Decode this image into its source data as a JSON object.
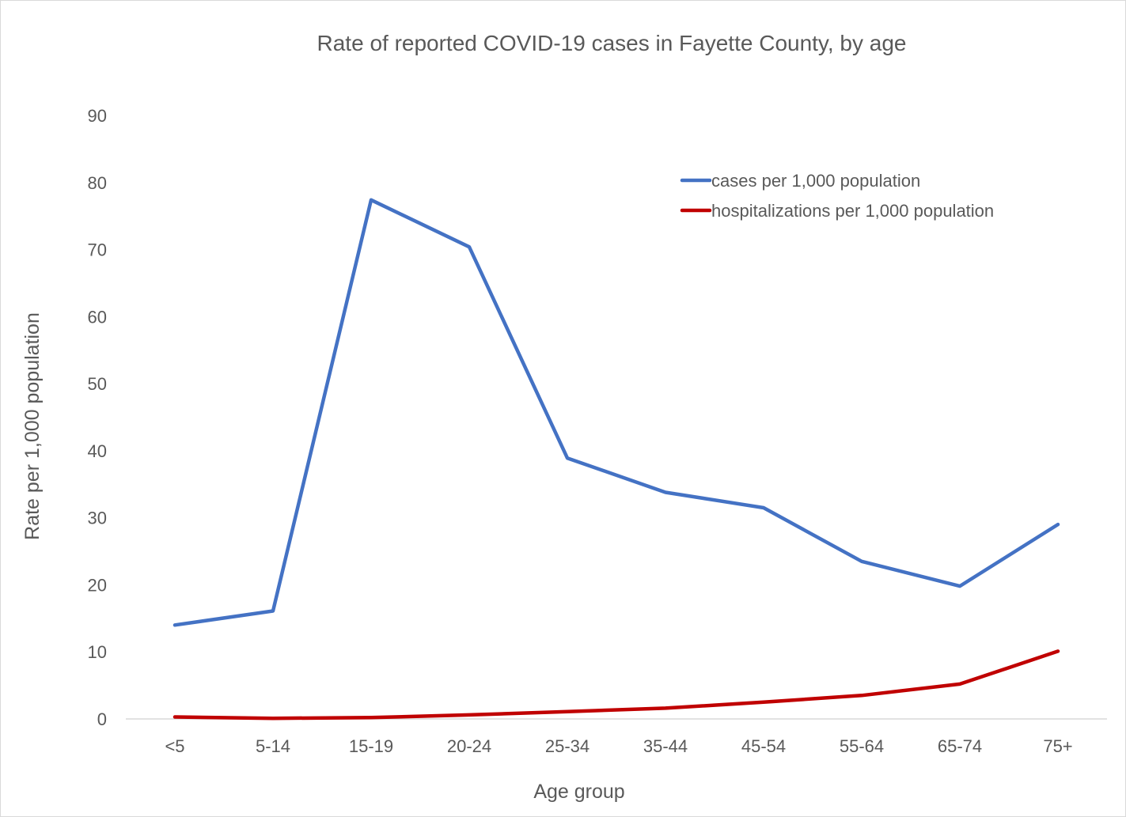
{
  "chart_data": {
    "type": "line",
    "title": "Rate of reported COVID-19 cases in Fayette County, by age",
    "xlabel": "Age group",
    "ylabel": "Rate per 1,000 population",
    "categories": [
      "<5",
      "5-14",
      "15-19",
      "20-24",
      "25-34",
      "35-44",
      "45-54",
      "55-64",
      "65-74",
      "75+"
    ],
    "ylim": [
      0,
      90
    ],
    "yticks": [
      0,
      10,
      20,
      30,
      40,
      50,
      60,
      70,
      80,
      90
    ],
    "yticks_labels": [
      "0",
      "10",
      "20",
      "30",
      "40",
      "50",
      "60",
      "70",
      "80",
      "90"
    ],
    "grid": false,
    "legend_position": "top-right",
    "series": [
      {
        "name": "cases per 1,000 population",
        "color": "#4472c4",
        "values": [
          14.0,
          16.1,
          77.4,
          70.4,
          38.9,
          33.8,
          31.5,
          23.5,
          19.8,
          29.0
        ]
      },
      {
        "name": "hospitalizations per 1,000 population",
        "color": "#c00000",
        "values": [
          0.3,
          0.1,
          0.2,
          0.6,
          1.1,
          1.6,
          2.5,
          3.5,
          5.2,
          10.1
        ]
      }
    ]
  }
}
